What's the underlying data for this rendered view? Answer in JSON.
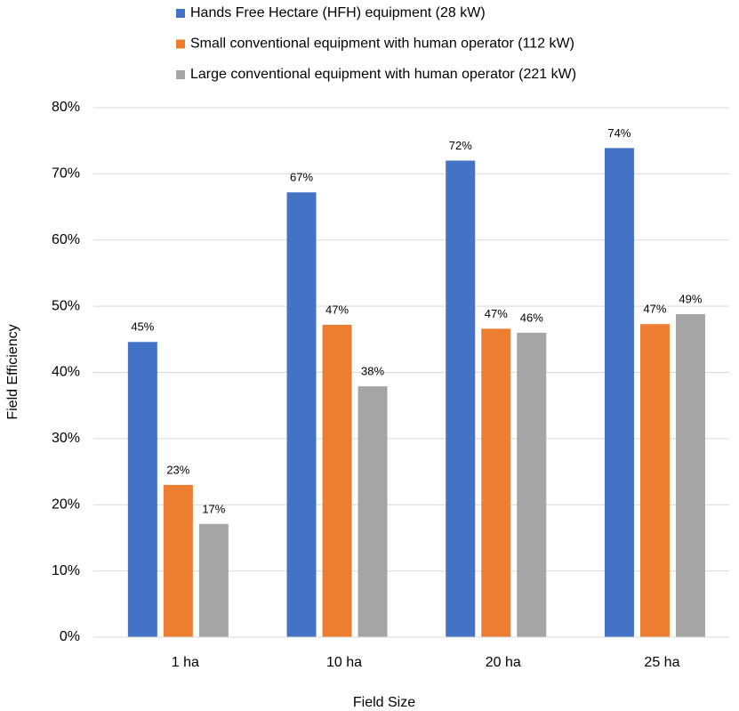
{
  "chart_data": {
    "type": "bar",
    "x_label": "Field Size",
    "y_label": "Field Efficiency",
    "categories": [
      "1 ha",
      "10 ha",
      "20 ha",
      "25 ha"
    ],
    "series": [
      {
        "name": "Hands Free Hectare (HFH) equipment (28 kW)",
        "color": "#4472c4",
        "values": [
          44.6,
          67.2,
          72.0,
          73.9
        ],
        "value_labels": [
          "45%",
          "67%",
          "72%",
          "74%"
        ]
      },
      {
        "name": "Small conventional equipment with human operator (112 kW)",
        "color": "#ed7d31",
        "values": [
          23.0,
          47.2,
          46.6,
          47.3
        ],
        "value_labels": [
          "23%",
          "47%",
          "47%",
          "47%"
        ]
      },
      {
        "name": "Large conventional equipment with human operator (221 kW)",
        "color": "#a5a5a5",
        "values": [
          17.1,
          37.9,
          46.0,
          48.8
        ],
        "value_labels": [
          "17%",
          "38%",
          "46%",
          "49%"
        ]
      }
    ],
    "ylim": [
      0,
      80
    ],
    "yticks": [
      {
        "value": 0,
        "label": "0%"
      },
      {
        "value": 10,
        "label": "10%"
      },
      {
        "value": 20,
        "label": "20%"
      },
      {
        "value": 30,
        "label": "30%"
      },
      {
        "value": 40,
        "label": "40%"
      },
      {
        "value": 50,
        "label": "50%"
      },
      {
        "value": 60,
        "label": "60%"
      },
      {
        "value": 70,
        "label": "70%"
      },
      {
        "value": 80,
        "label": "80%"
      }
    ],
    "grid": true,
    "legend": "top"
  }
}
